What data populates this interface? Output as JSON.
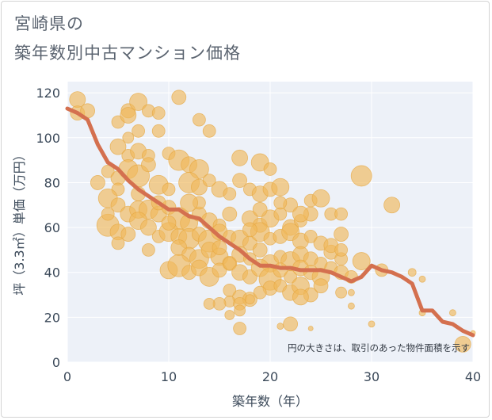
{
  "title": {
    "line1": "宮崎県の",
    "line2": "築年数別中古マンション価格"
  },
  "note": "円の大きさは、取引のあった物件面積を示す",
  "colors": {
    "bubble": "#f0b85a",
    "bubble_stroke": "#e6a640",
    "line": "#d4704f",
    "plot_bg": "#edf1f8",
    "grid": "#ffffff"
  },
  "chart_data": {
    "type": "scatter",
    "xlabel": "築年数（年）",
    "ylabel": "坪（3.3㎡）単価（万円）",
    "xlim": [
      0,
      40
    ],
    "ylim": [
      0,
      125
    ],
    "xticks": [
      0,
      10,
      20,
      30,
      40
    ],
    "yticks": [
      0,
      20,
      40,
      60,
      80,
      100,
      120
    ],
    "grid": true,
    "series": [
      {
        "type": "bubble",
        "points": [
          [
            1,
            117,
            10
          ],
          [
            1,
            111,
            9
          ],
          [
            2,
            112,
            9
          ],
          [
            5,
            107,
            8
          ],
          [
            6,
            112,
            9
          ],
          [
            6,
            110,
            10
          ],
          [
            7,
            116,
            11
          ],
          [
            7,
            103,
            8
          ],
          [
            8,
            112,
            8
          ],
          [
            9,
            111,
            8
          ],
          [
            11,
            118,
            9
          ],
          [
            6,
            100,
            7
          ],
          [
            9,
            103,
            8
          ],
          [
            13,
            108,
            8
          ],
          [
            14,
            103,
            8
          ],
          [
            5,
            96,
            10
          ],
          [
            6,
            92,
            8
          ],
          [
            7,
            94,
            10
          ],
          [
            8,
            92,
            8
          ],
          [
            10,
            93,
            8
          ],
          [
            11,
            90,
            13
          ],
          [
            12,
            88,
            10
          ],
          [
            13,
            86,
            12
          ],
          [
            17,
            91,
            10
          ],
          [
            19,
            89,
            11
          ],
          [
            20,
            86,
            8
          ],
          [
            4,
            85,
            8
          ],
          [
            5,
            82,
            9
          ],
          [
            6,
            86,
            12
          ],
          [
            7,
            83,
            14
          ],
          [
            8,
            88,
            9
          ],
          [
            3,
            80,
            9
          ],
          [
            5,
            77,
            8
          ],
          [
            9,
            79,
            12
          ],
          [
            10,
            77,
            8
          ],
          [
            12,
            80,
            13
          ],
          [
            13,
            78,
            10
          ],
          [
            14,
            81,
            8
          ],
          [
            15,
            77,
            10
          ],
          [
            16,
            75,
            8
          ],
          [
            17,
            81,
            9
          ],
          [
            18,
            77,
            8
          ],
          [
            19,
            75,
            10
          ],
          [
            20,
            77,
            9
          ],
          [
            21,
            78,
            11
          ],
          [
            22,
            70,
            9
          ],
          [
            24,
            72,
            8
          ],
          [
            25,
            73,
            11
          ],
          [
            4,
            73,
            12
          ],
          [
            5,
            70,
            9
          ],
          [
            6,
            66,
            10
          ],
          [
            7,
            68,
            11
          ],
          [
            8,
            68,
            12
          ],
          [
            9,
            66,
            10
          ],
          [
            10,
            69,
            9
          ],
          [
            11,
            64,
            14
          ],
          [
            12,
            62,
            11
          ],
          [
            13,
            66,
            9
          ],
          [
            14,
            63,
            10
          ],
          [
            15,
            61,
            8
          ],
          [
            16,
            66,
            9
          ],
          [
            18,
            64,
            10
          ],
          [
            19,
            61,
            9
          ],
          [
            20,
            64,
            11
          ],
          [
            21,
            66,
            8
          ],
          [
            22,
            60,
            10
          ],
          [
            23,
            63,
            8
          ],
          [
            24,
            66,
            9
          ],
          [
            26,
            66,
            8
          ],
          [
            27,
            66,
            8
          ],
          [
            4,
            61,
            14
          ],
          [
            5,
            58,
            10
          ],
          [
            6,
            57,
            9
          ],
          [
            7,
            63,
            11
          ],
          [
            8,
            60,
            10
          ],
          [
            9,
            56,
            8
          ],
          [
            10,
            58,
            12
          ],
          [
            11,
            56,
            10
          ],
          [
            12,
            55,
            13
          ],
          [
            13,
            57,
            9
          ],
          [
            14,
            54,
            14
          ],
          [
            15,
            58,
            10
          ],
          [
            16,
            56,
            8
          ],
          [
            17,
            55,
            11
          ],
          [
            18,
            53,
            9
          ],
          [
            19,
            58,
            12
          ],
          [
            20,
            55,
            8
          ],
          [
            21,
            56,
            9
          ],
          [
            22,
            58,
            11
          ],
          [
            23,
            54,
            10
          ],
          [
            24,
            56,
            8
          ],
          [
            25,
            53,
            9
          ],
          [
            27,
            57,
            9
          ],
          [
            5,
            53,
            8
          ],
          [
            8,
            50,
            8
          ],
          [
            11,
            51,
            10
          ],
          [
            12,
            48,
            9
          ],
          [
            13,
            46,
            12
          ],
          [
            14,
            50,
            10
          ],
          [
            15,
            47,
            11
          ],
          [
            16,
            44,
            9
          ],
          [
            17,
            48,
            10
          ],
          [
            18,
            46,
            8
          ],
          [
            19,
            50,
            9
          ],
          [
            20,
            44,
            11
          ],
          [
            21,
            47,
            8
          ],
          [
            22,
            45,
            12
          ],
          [
            23,
            48,
            10
          ],
          [
            24,
            46,
            9
          ],
          [
            25,
            44,
            8
          ],
          [
            26,
            49,
            9
          ],
          [
            27,
            46,
            8
          ],
          [
            10,
            41,
            11
          ],
          [
            11,
            43,
            14
          ],
          [
            12,
            40,
            9
          ],
          [
            13,
            42,
            10
          ],
          [
            14,
            38,
            12
          ],
          [
            15,
            41,
            9
          ],
          [
            16,
            44,
            8
          ],
          [
            17,
            40,
            10
          ],
          [
            18,
            38,
            9
          ],
          [
            19,
            42,
            11
          ],
          [
            20,
            37,
            14
          ],
          [
            21,
            41,
            9
          ],
          [
            22,
            38,
            8
          ],
          [
            23,
            42,
            10
          ],
          [
            24,
            40,
            9
          ],
          [
            25,
            38,
            11
          ],
          [
            26,
            42,
            8
          ],
          [
            27,
            40,
            9
          ],
          [
            28,
            38,
            8
          ],
          [
            29,
            45,
            11
          ],
          [
            31,
            41,
            8
          ],
          [
            20,
            33,
            9
          ],
          [
            21,
            34,
            8
          ],
          [
            22,
            31,
            10
          ],
          [
            23,
            34,
            11
          ],
          [
            24,
            30,
            9
          ],
          [
            25,
            34,
            9
          ],
          [
            16,
            32,
            8
          ],
          [
            17,
            29,
            9
          ],
          [
            18,
            28,
            9
          ],
          [
            19,
            31,
            8
          ],
          [
            23,
            29,
            10
          ],
          [
            16,
            27,
            7
          ],
          [
            17,
            26,
            8
          ],
          [
            15,
            26,
            8
          ],
          [
            14,
            26,
            7
          ],
          [
            16,
            21,
            6
          ],
          [
            17,
            23,
            7
          ],
          [
            18,
            28,
            6
          ],
          [
            17,
            15,
            8
          ],
          [
            21,
            16,
            4
          ],
          [
            22,
            17,
            9
          ],
          [
            24,
            15,
            3
          ],
          [
            29,
            83,
            13
          ],
          [
            32,
            70,
            10
          ],
          [
            30,
            17,
            4
          ],
          [
            28,
            25,
            4
          ],
          [
            28,
            31,
            4
          ],
          [
            34,
            40,
            5
          ],
          [
            35,
            37,
            4
          ],
          [
            38,
            22,
            4
          ],
          [
            39,
            8,
            10
          ],
          [
            27,
            31,
            7
          ],
          [
            15,
            51,
            9
          ],
          [
            9,
            71,
            9
          ],
          [
            4,
            66,
            8
          ],
          [
            13,
            71,
            8
          ],
          [
            19,
            68,
            9
          ],
          [
            21,
            71,
            8
          ],
          [
            23,
            66,
            10
          ],
          [
            26,
            52,
            9
          ],
          [
            27,
            50,
            8
          ],
          [
            18,
            59,
            9
          ],
          [
            12,
            71,
            11
          ],
          [
            10,
            62,
            9
          ],
          [
            7,
            75,
            9
          ],
          [
            40,
            13,
            3
          ],
          [
            35,
            22,
            4
          ]
        ]
      },
      {
        "type": "line",
        "x": [
          0,
          1,
          2,
          3,
          4,
          5,
          6,
          7,
          8,
          9,
          10,
          11,
          12,
          13,
          14,
          15,
          16,
          17,
          18,
          19,
          20,
          21,
          22,
          23,
          24,
          25,
          26,
          27,
          28,
          29,
          30,
          31,
          32,
          33,
          34,
          35,
          36,
          37,
          38,
          39,
          40
        ],
        "y": [
          113,
          111,
          108,
          97,
          89,
          86,
          81,
          77,
          74,
          71,
          68,
          68,
          65,
          64,
          60,
          56,
          53,
          50,
          46,
          43,
          43,
          42,
          42,
          41,
          41,
          41,
          40,
          38,
          36,
          38,
          43,
          41,
          40,
          38,
          35,
          23,
          23,
          18,
          17,
          14,
          12
        ]
      }
    ]
  }
}
